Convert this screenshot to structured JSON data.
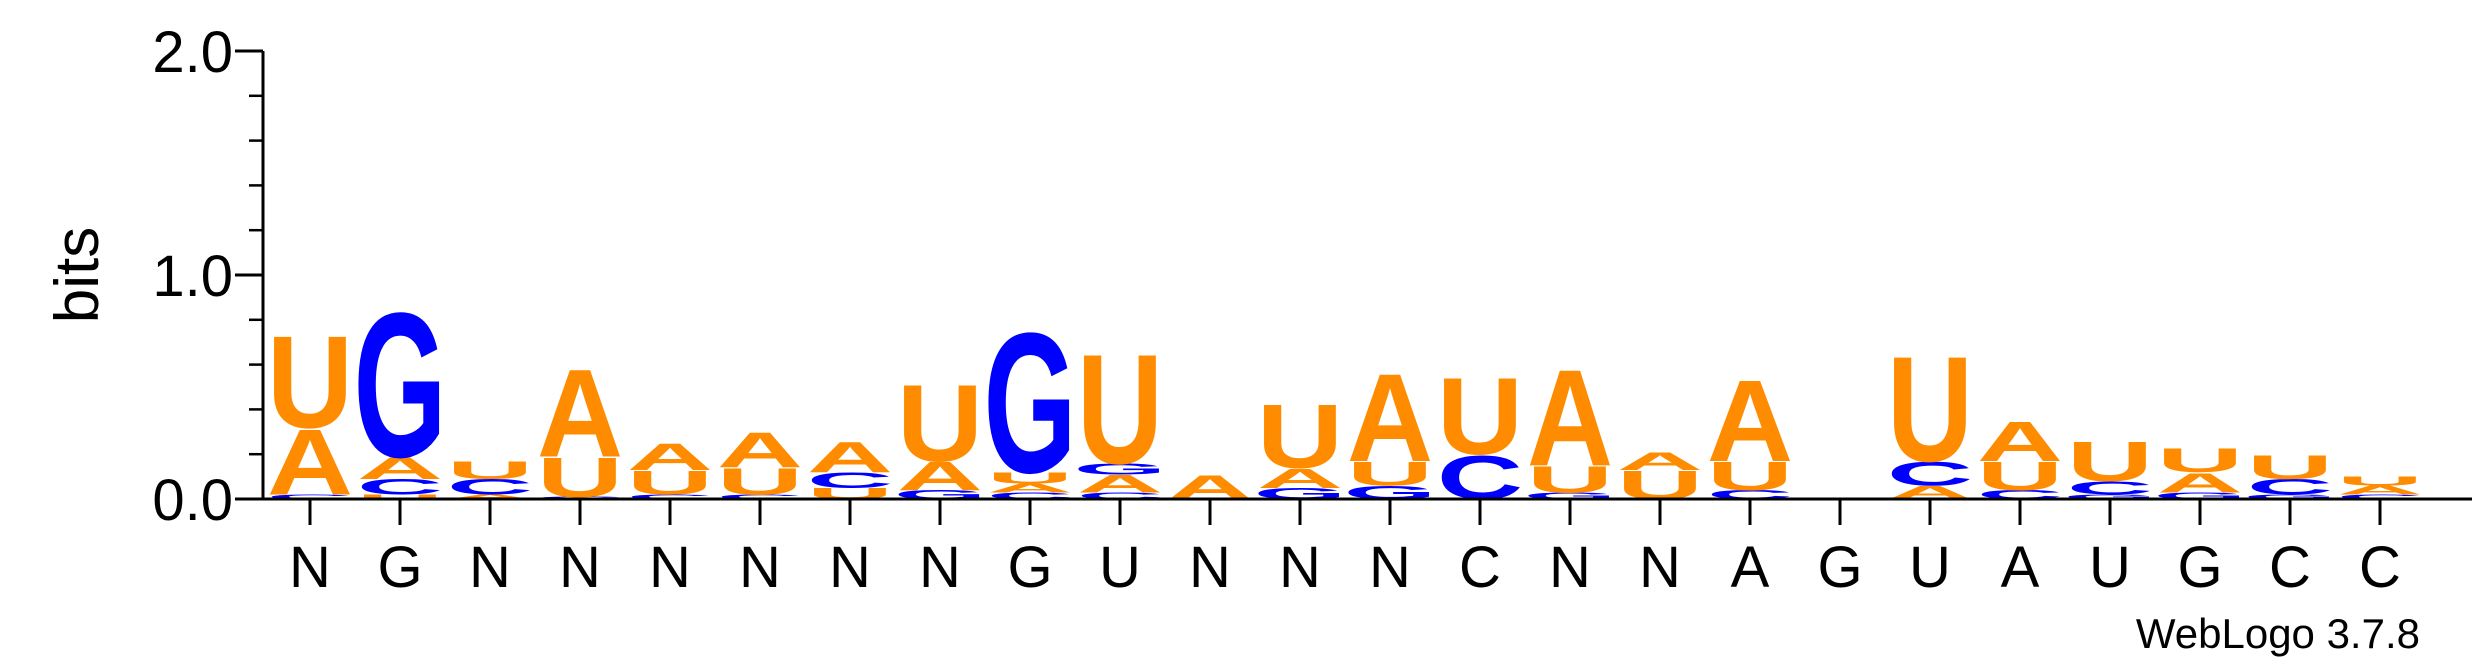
{
  "chart_data": {
    "type": "sequence-logo",
    "ylabel": "bits",
    "ylim": [
      0,
      2.0
    ],
    "yticks": [
      "0.0",
      "1.0",
      "2.0"
    ],
    "colors": {
      "A": "#ff8c00",
      "U": "#ff8c00",
      "G": "#0000ff",
      "C": "#0000ff"
    },
    "positions": [
      {
        "label": "N",
        "letters": [
          {
            "base": "C",
            "bits": 0.02
          },
          {
            "base": "A",
            "bits": 0.3
          },
          {
            "base": "U",
            "bits": 0.42
          }
        ]
      },
      {
        "label": "G",
        "letters": [
          {
            "base": "U",
            "bits": 0.02
          },
          {
            "base": "C",
            "bits": 0.07
          },
          {
            "base": "A",
            "bits": 0.1
          },
          {
            "base": "G",
            "bits": 0.66
          }
        ]
      },
      {
        "label": "N",
        "letters": [
          {
            "base": "A",
            "bits": 0.02
          },
          {
            "base": "C",
            "bits": 0.07
          },
          {
            "base": "U",
            "bits": 0.08
          }
        ]
      },
      {
        "label": "N",
        "letters": [
          {
            "base": "C",
            "bits": 0.01
          },
          {
            "base": "U",
            "bits": 0.18
          },
          {
            "base": "A",
            "bits": 0.4
          }
        ]
      },
      {
        "label": "N",
        "letters": [
          {
            "base": "C",
            "bits": 0.02
          },
          {
            "base": "U",
            "bits": 0.11
          },
          {
            "base": "A",
            "bits": 0.12
          }
        ]
      },
      {
        "label": "N",
        "letters": [
          {
            "base": "C",
            "bits": 0.02
          },
          {
            "base": "U",
            "bits": 0.12
          },
          {
            "base": "A",
            "bits": 0.16
          }
        ]
      },
      {
        "label": "N",
        "letters": [
          {
            "base": "U",
            "bits": 0.05
          },
          {
            "base": "C",
            "bits": 0.07
          },
          {
            "base": "A",
            "bits": 0.14
          }
        ]
      },
      {
        "label": "N",
        "letters": [
          {
            "base": "G",
            "bits": 0.04
          },
          {
            "base": "A",
            "bits": 0.13
          },
          {
            "base": "U",
            "bits": 0.35
          }
        ]
      },
      {
        "label": "G",
        "letters": [
          {
            "base": "C",
            "bits": 0.03
          },
          {
            "base": "A",
            "bits": 0.04
          },
          {
            "base": "U",
            "bits": 0.05
          },
          {
            "base": "G",
            "bits": 0.64
          }
        ]
      },
      {
        "label": "U",
        "letters": [
          {
            "base": "C",
            "bits": 0.03
          },
          {
            "base": "A",
            "bits": 0.08
          },
          {
            "base": "G",
            "bits": 0.05
          },
          {
            "base": "U",
            "bits": 0.5
          }
        ]
      },
      {
        "label": "N",
        "letters": [
          {
            "base": "A",
            "bits": 0.11
          }
        ]
      },
      {
        "label": "N",
        "letters": [
          {
            "base": "G",
            "bits": 0.05
          },
          {
            "base": "A",
            "bits": 0.09
          },
          {
            "base": "U",
            "bits": 0.29
          }
        ]
      },
      {
        "label": "N",
        "letters": [
          {
            "base": "G",
            "bits": 0.06
          },
          {
            "base": "U",
            "bits": 0.11
          },
          {
            "base": "A",
            "bits": 0.4
          }
        ]
      },
      {
        "label": "C",
        "letters": [
          {
            "base": "C",
            "bits": 0.2
          },
          {
            "base": "U",
            "bits": 0.35
          }
        ]
      },
      {
        "label": "N",
        "letters": [
          {
            "base": "G",
            "bits": 0.03
          },
          {
            "base": "U",
            "bits": 0.12
          },
          {
            "base": "A",
            "bits": 0.44
          }
        ]
      },
      {
        "label": "N",
        "letters": [
          {
            "base": "U",
            "bits": 0.13
          },
          {
            "base": "A",
            "bits": 0.08
          }
        ]
      },
      {
        "label": "A",
        "letters": [
          {
            "base": "C",
            "bits": 0.04
          },
          {
            "base": "U",
            "bits": 0.13
          },
          {
            "base": "A",
            "bits": 0.37
          }
        ]
      },
      {
        "label": "G",
        "letters": []
      },
      {
        "label": "U",
        "letters": [
          {
            "base": "A",
            "bits": 0.06
          },
          {
            "base": "C",
            "bits": 0.11
          },
          {
            "base": "U",
            "bits": 0.48
          }
        ]
      },
      {
        "label": "A",
        "letters": [
          {
            "base": "C",
            "bits": 0.04
          },
          {
            "base": "U",
            "bits": 0.13
          },
          {
            "base": "A",
            "bits": 0.18
          }
        ]
      },
      {
        "label": "U",
        "letters": [
          {
            "base": "G",
            "bits": 0.02
          },
          {
            "base": "C",
            "bits": 0.06
          },
          {
            "base": "U",
            "bits": 0.18
          }
        ]
      },
      {
        "label": "G",
        "letters": [
          {
            "base": "G",
            "bits": 0.03
          },
          {
            "base": "A",
            "bits": 0.09
          },
          {
            "base": "U",
            "bits": 0.11
          }
        ]
      },
      {
        "label": "C",
        "letters": [
          {
            "base": "G",
            "bits": 0.02
          },
          {
            "base": "C",
            "bits": 0.07
          },
          {
            "base": "U",
            "bits": 0.11
          }
        ]
      },
      {
        "label": "C",
        "letters": [
          {
            "base": "C",
            "bits": 0.02
          },
          {
            "base": "A",
            "bits": 0.04
          },
          {
            "base": "U",
            "bits": 0.04
          }
        ]
      }
    ]
  },
  "footer": {
    "credit": "WebLogo 3.7.8"
  }
}
